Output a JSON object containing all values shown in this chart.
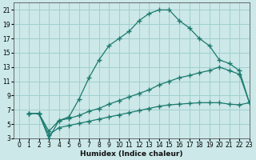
{
  "xlabel": "Humidex (Indice chaleur)",
  "xlim": [
    -0.5,
    23
  ],
  "ylim": [
    3,
    22
  ],
  "yticks": [
    3,
    5,
    7,
    9,
    11,
    13,
    15,
    17,
    19,
    21
  ],
  "xticks": [
    0,
    1,
    2,
    3,
    4,
    5,
    6,
    7,
    8,
    9,
    10,
    11,
    12,
    13,
    14,
    15,
    16,
    17,
    18,
    19,
    20,
    21,
    22,
    23
  ],
  "bg_color": "#cce8e8",
  "grid_color": "#99cccc",
  "line_color": "#1a7a6e",
  "curve1_x": [
    1,
    2,
    3,
    4,
    5,
    6,
    7,
    8,
    9,
    10,
    11,
    12,
    13,
    14,
    15,
    16,
    17,
    18,
    19,
    20,
    21,
    22,
    23
  ],
  "curve1_y": [
    6.5,
    6.5,
    3.0,
    5.5,
    6.0,
    8.5,
    11.5,
    14.0,
    16.0,
    17.0,
    18.0,
    19.5,
    20.5,
    21.0,
    21.0,
    19.5,
    18.5,
    17.0,
    16.0,
    14.0,
    13.5,
    12.5,
    8.0
  ],
  "curve2_x": [
    1,
    2,
    3,
    4,
    5,
    6,
    7,
    8,
    9,
    10,
    11,
    12,
    13,
    14,
    15,
    16,
    17,
    18,
    19,
    20,
    21,
    22,
    23
  ],
  "curve2_y": [
    6.5,
    6.5,
    4.0,
    5.5,
    5.8,
    6.2,
    6.8,
    7.2,
    7.8,
    8.3,
    8.8,
    9.3,
    9.8,
    10.5,
    11.0,
    11.5,
    11.8,
    12.2,
    12.5,
    13.0,
    12.5,
    12.0,
    8.0
  ],
  "curve3_x": [
    1,
    2,
    3,
    4,
    5,
    6,
    7,
    8,
    9,
    10,
    11,
    12,
    13,
    14,
    15,
    16,
    17,
    18,
    19,
    20,
    21,
    22,
    23
  ],
  "curve3_y": [
    6.5,
    6.5,
    3.5,
    4.5,
    4.8,
    5.1,
    5.4,
    5.7,
    6.0,
    6.3,
    6.6,
    6.9,
    7.2,
    7.5,
    7.7,
    7.8,
    7.9,
    8.0,
    8.0,
    8.0,
    7.8,
    7.7,
    8.0
  ]
}
